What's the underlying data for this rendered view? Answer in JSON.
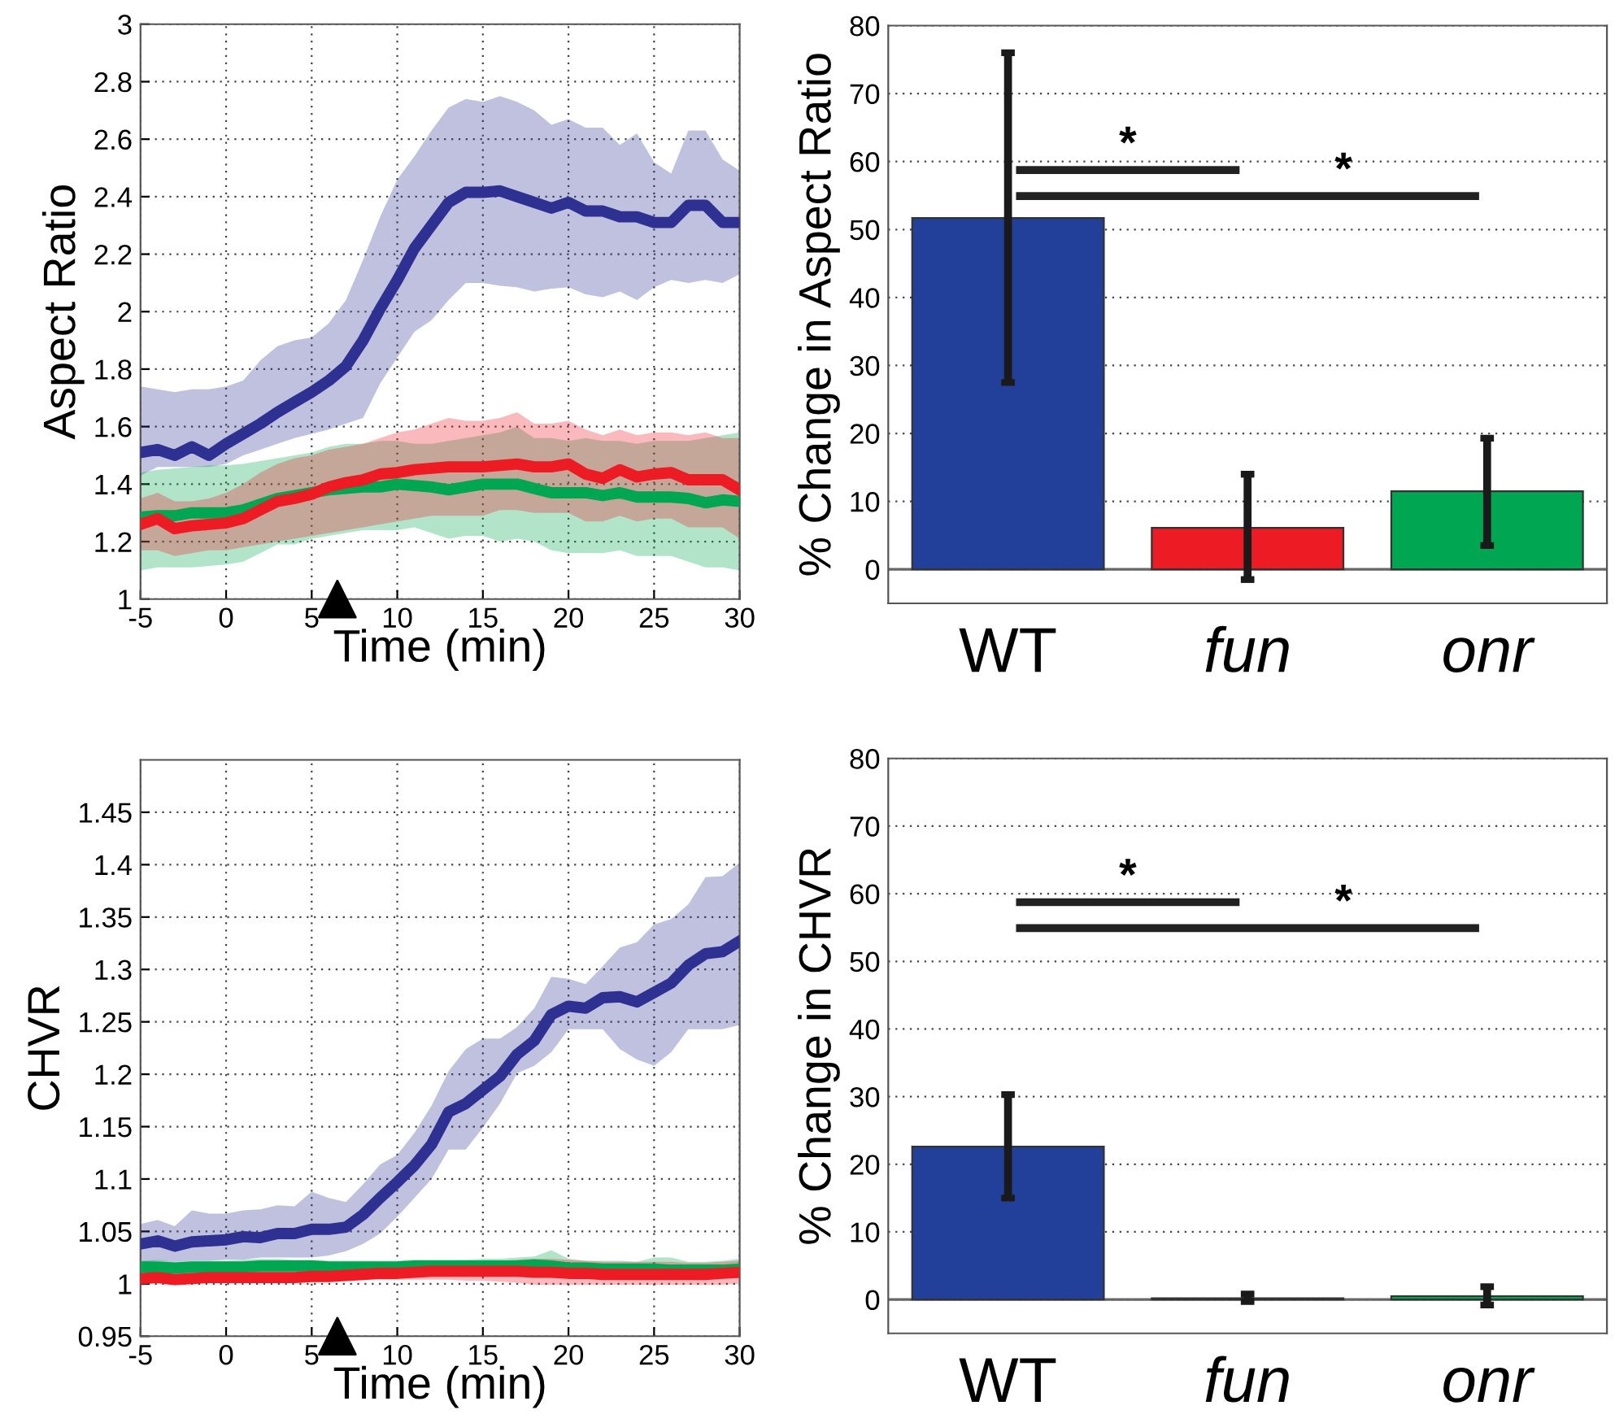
{
  "chart_data": [
    {
      "type": "line",
      "xlabel": "Time (min)",
      "ylabel": "Aspect Ratio",
      "xlim": [
        -5,
        30
      ],
      "ylim": [
        1,
        3
      ],
      "xticks": [
        -5,
        0,
        5,
        10,
        15,
        20,
        25,
        30
      ],
      "yticks": [
        1,
        1.2,
        1.4,
        1.6,
        1.8,
        2,
        2.2,
        2.4,
        2.6,
        2.8,
        3
      ],
      "grid": true,
      "x": [
        -5,
        -4,
        -3,
        -2,
        -1,
        0,
        1,
        2,
        3,
        4,
        5,
        6,
        7,
        8,
        9,
        10,
        11,
        12,
        13,
        14,
        15,
        16,
        17,
        18,
        19,
        20,
        21,
        22,
        23,
        24,
        25,
        26,
        27,
        28,
        29,
        30
      ],
      "series": [
        {
          "color": "#2e3192",
          "values": [
            1.51,
            1.52,
            1.5,
            1.53,
            1.5,
            1.54,
            1.575,
            1.61,
            1.65,
            1.685,
            1.72,
            1.76,
            1.81,
            1.9,
            2.01,
            2.11,
            2.22,
            2.3,
            2.38,
            2.415,
            2.415,
            2.42,
            2.4,
            2.38,
            2.36,
            2.38,
            2.35,
            2.35,
            2.33,
            2.33,
            2.31,
            2.31,
            2.37,
            2.37,
            2.31,
            2.31
          ],
          "upper": [
            1.74,
            1.73,
            1.72,
            1.73,
            1.73,
            1.74,
            1.76,
            1.83,
            1.88,
            1.9,
            1.91,
            1.96,
            2.04,
            2.18,
            2.33,
            2.46,
            2.54,
            2.63,
            2.71,
            2.74,
            2.73,
            2.75,
            2.73,
            2.7,
            2.65,
            2.67,
            2.64,
            2.64,
            2.58,
            2.62,
            2.52,
            2.48,
            2.63,
            2.63,
            2.53,
            2.49
          ],
          "lower": [
            1.43,
            1.46,
            1.46,
            1.46,
            1.46,
            1.47,
            1.5,
            1.52,
            1.54,
            1.56,
            1.575,
            1.59,
            1.61,
            1.63,
            1.75,
            1.84,
            1.93,
            1.97,
            2.04,
            2.1,
            2.1,
            2.09,
            2.085,
            2.07,
            2.08,
            2.085,
            2.06,
            2.05,
            2.07,
            2.04,
            2.085,
            2.11,
            2.1,
            2.11,
            2.1,
            2.13
          ]
        },
        {
          "color": "#00a651",
          "values": [
            1.285,
            1.29,
            1.29,
            1.3,
            1.3,
            1.3,
            1.31,
            1.33,
            1.35,
            1.36,
            1.37,
            1.38,
            1.385,
            1.39,
            1.39,
            1.4,
            1.395,
            1.39,
            1.38,
            1.39,
            1.4,
            1.4,
            1.4,
            1.385,
            1.37,
            1.37,
            1.37,
            1.36,
            1.37,
            1.355,
            1.355,
            1.355,
            1.35,
            1.335,
            1.345,
            1.34
          ],
          "upper": [
            1.44,
            1.45,
            1.455,
            1.46,
            1.465,
            1.465,
            1.47,
            1.48,
            1.49,
            1.5,
            1.51,
            1.53,
            1.54,
            1.54,
            1.55,
            1.55,
            1.54,
            1.54,
            1.55,
            1.56,
            1.57,
            1.58,
            1.6,
            1.56,
            1.56,
            1.55,
            1.56,
            1.55,
            1.55,
            1.54,
            1.55,
            1.55,
            1.55,
            1.56,
            1.57,
            1.58
          ],
          "lower": [
            1.1,
            1.11,
            1.11,
            1.11,
            1.115,
            1.12,
            1.13,
            1.16,
            1.19,
            1.19,
            1.21,
            1.22,
            1.23,
            1.24,
            1.24,
            1.24,
            1.25,
            1.23,
            1.21,
            1.22,
            1.22,
            1.2,
            1.21,
            1.2,
            1.17,
            1.16,
            1.16,
            1.16,
            1.17,
            1.15,
            1.15,
            1.15,
            1.13,
            1.11,
            1.11,
            1.1
          ]
        },
        {
          "color": "#ed1c24",
          "values": [
            1.26,
            1.28,
            1.245,
            1.255,
            1.26,
            1.265,
            1.28,
            1.31,
            1.34,
            1.35,
            1.365,
            1.39,
            1.405,
            1.415,
            1.435,
            1.44,
            1.45,
            1.455,
            1.46,
            1.46,
            1.46,
            1.465,
            1.47,
            1.46,
            1.46,
            1.47,
            1.435,
            1.42,
            1.45,
            1.425,
            1.435,
            1.44,
            1.415,
            1.415,
            1.415,
            1.38
          ],
          "upper": [
            1.35,
            1.37,
            1.34,
            1.34,
            1.35,
            1.37,
            1.4,
            1.44,
            1.47,
            1.49,
            1.5,
            1.52,
            1.53,
            1.54,
            1.56,
            1.58,
            1.59,
            1.61,
            1.63,
            1.62,
            1.62,
            1.63,
            1.65,
            1.61,
            1.61,
            1.62,
            1.59,
            1.57,
            1.59,
            1.57,
            1.58,
            1.58,
            1.57,
            1.58,
            1.56,
            1.56
          ],
          "lower": [
            1.17,
            1.17,
            1.15,
            1.16,
            1.17,
            1.17,
            1.18,
            1.19,
            1.2,
            1.21,
            1.22,
            1.23,
            1.24,
            1.25,
            1.26,
            1.27,
            1.28,
            1.29,
            1.29,
            1.29,
            1.29,
            1.31,
            1.31,
            1.3,
            1.3,
            1.3,
            1.27,
            1.27,
            1.29,
            1.27,
            1.28,
            1.28,
            1.25,
            1.25,
            1.25,
            1.21
          ]
        },
        {
          "type": "scatter",
          "x": [
            6.5
          ],
          "values": [
            1
          ],
          "color": "#000000",
          "marker": "triangle"
        }
      ]
    },
    {
      "type": "bar",
      "ylabel": "% Change in Aspect Ratio",
      "categories": [
        "WT",
        "fun",
        "onr"
      ],
      "values": [
        51.7,
        6.1,
        11.5
      ],
      "colors": [
        "#22409a",
        "#ed1c24",
        "#00a651"
      ],
      "errors": [
        [
          27.5,
          76
        ],
        [
          -1.5,
          14
        ],
        [
          3.5,
          19.3
        ]
      ],
      "ylim": [
        -5,
        80
      ],
      "yticks": [
        0,
        10,
        20,
        30,
        40,
        50,
        60,
        70,
        80
      ],
      "grid": "y",
      "ref_lines": [
        {
          "axis": "y",
          "value": 0,
          "color": "#666666"
        }
      ],
      "annotations": [
        "*",
        "*"
      ]
    },
    {
      "type": "line",
      "xlabel": "Time (min)",
      "ylabel": "CHVR",
      "xlim": [
        -5,
        30
      ],
      "ylim": [
        0.95,
        1.5
      ],
      "xticks": [
        -5,
        0,
        5,
        10,
        15,
        20,
        25,
        30
      ],
      "yticks": [
        0.95,
        1,
        1.05,
        1.1,
        1.15,
        1.2,
        1.25,
        1.3,
        1.35,
        1.4,
        1.45
      ],
      "grid": true,
      "x": [
        -5,
        -4,
        -3,
        -2,
        -1,
        0,
        1,
        2,
        3,
        4,
        5,
        6,
        7,
        8,
        9,
        10,
        11,
        12,
        13,
        14,
        15,
        16,
        17,
        18,
        19,
        20,
        21,
        22,
        23,
        24,
        25,
        26,
        27,
        28,
        29,
        30
      ],
      "series": [
        {
          "color": "#2e3192",
          "values": [
            1.038,
            1.041,
            1.036,
            1.04,
            1.041,
            1.042,
            1.045,
            1.044,
            1.048,
            1.048,
            1.052,
            1.052,
            1.054,
            1.066,
            1.082,
            1.097,
            1.113,
            1.133,
            1.164,
            1.172,
            1.185,
            1.198,
            1.219,
            1.232,
            1.257,
            1.265,
            1.263,
            1.273,
            1.274,
            1.269,
            1.278,
            1.287,
            1.304,
            1.315,
            1.317,
            1.327
          ],
          "upper": [
            1.057,
            1.061,
            1.055,
            1.07,
            1.067,
            1.067,
            1.07,
            1.071,
            1.075,
            1.074,
            1.088,
            1.082,
            1.078,
            1.095,
            1.114,
            1.123,
            1.144,
            1.17,
            1.203,
            1.224,
            1.234,
            1.234,
            1.245,
            1.263,
            1.293,
            1.291,
            1.286,
            1.303,
            1.321,
            1.326,
            1.343,
            1.348,
            1.362,
            1.388,
            1.389,
            1.402
          ],
          "lower": [
            1.02,
            1.022,
            1.021,
            1.022,
            1.022,
            1.023,
            1.023,
            1.025,
            1.025,
            1.025,
            1.025,
            1.027,
            1.031,
            1.038,
            1.048,
            1.064,
            1.082,
            1.1,
            1.128,
            1.128,
            1.149,
            1.172,
            1.201,
            1.208,
            1.221,
            1.243,
            1.243,
            1.243,
            1.224,
            1.214,
            1.208,
            1.221,
            1.243,
            1.243,
            1.243,
            1.247
          ]
        },
        {
          "color": "#00a651",
          "values": [
            1.016,
            1.016,
            1.015,
            1.016,
            1.016,
            1.016,
            1.016,
            1.017,
            1.017,
            1.017,
            1.017,
            1.016,
            1.016,
            1.016,
            1.016,
            1.016,
            1.017,
            1.017,
            1.017,
            1.017,
            1.017,
            1.017,
            1.017,
            1.018,
            1.017,
            1.015,
            1.015,
            1.014,
            1.014,
            1.014,
            1.014,
            1.013,
            1.013,
            1.013,
            1.013,
            1.014
          ],
          "upper": [
            1.022,
            1.023,
            1.021,
            1.022,
            1.022,
            1.022,
            1.023,
            1.024,
            1.024,
            1.023,
            1.023,
            1.022,
            1.022,
            1.022,
            1.022,
            1.022,
            1.023,
            1.023,
            1.023,
            1.023,
            1.024,
            1.024,
            1.025,
            1.026,
            1.032,
            1.024,
            1.022,
            1.022,
            1.022,
            1.021,
            1.025,
            1.025,
            1.021,
            1.021,
            1.022,
            1.024
          ],
          "lower": [
            1.01,
            1.01,
            1.009,
            1.01,
            1.01,
            1.01,
            1.01,
            1.011,
            1.011,
            1.011,
            1.011,
            1.01,
            1.01,
            1.01,
            1.01,
            1.01,
            1.011,
            1.011,
            1.011,
            1.011,
            1.011,
            1.011,
            1.01,
            1.008,
            1.008,
            1.007,
            1.007,
            1.006,
            1.006,
            1.006,
            1.006,
            1.005,
            1.005,
            1.005,
            1.005,
            1.006
          ]
        },
        {
          "color": "#ed1c24",
          "values": [
            1.005,
            1.006,
            1.004,
            1.005,
            1.006,
            1.006,
            1.006,
            1.006,
            1.006,
            1.006,
            1.007,
            1.007,
            1.008,
            1.009,
            1.01,
            1.01,
            1.011,
            1.012,
            1.012,
            1.012,
            1.012,
            1.012,
            1.012,
            1.011,
            1.011,
            1.01,
            1.01,
            1.009,
            1.009,
            1.009,
            1.009,
            1.009,
            1.009,
            1.009,
            1.01,
            1.011
          ],
          "upper": [
            1.011,
            1.012,
            1.01,
            1.011,
            1.012,
            1.012,
            1.012,
            1.012,
            1.012,
            1.012,
            1.013,
            1.013,
            1.014,
            1.016,
            1.017,
            1.018,
            1.019,
            1.02,
            1.021,
            1.021,
            1.021,
            1.022,
            1.023,
            1.024,
            1.024,
            1.023,
            1.022,
            1.021,
            1.021,
            1.021,
            1.021,
            1.021,
            1.02,
            1.02,
            1.021,
            1.022
          ],
          "lower": [
            1.0,
            1.001,
            0.999,
            1.0,
            1.001,
            1.001,
            1.001,
            1.001,
            1.001,
            1.001,
            1.002,
            1.002,
            1.003,
            1.004,
            1.004,
            1.004,
            1.004,
            1.004,
            1.004,
            1.003,
            1.003,
            1.002,
            1.001,
            0.999,
            0.999,
            0.999,
            0.999,
            0.999,
            0.999,
            0.999,
            0.999,
            0.999,
            0.999,
            0.999,
            0.999,
            1.0
          ]
        },
        {
          "type": "scatter",
          "x": [
            6.5
          ],
          "values": [
            0.95
          ],
          "color": "#000000",
          "marker": "triangle"
        }
      ]
    },
    {
      "type": "bar",
      "ylabel": "% Change in CHVR",
      "categories": [
        "WT",
        "fun",
        "onr"
      ],
      "values": [
        22.6,
        0.2,
        0.5
      ],
      "colors": [
        "#22409a",
        "#ed1c24",
        "#00a651"
      ],
      "errors": [
        [
          15,
          30.3
        ],
        [
          -0.3,
          0.8
        ],
        [
          -0.8,
          1.9
        ]
      ],
      "ylim": [
        -5,
        80
      ],
      "yticks": [
        0,
        10,
        20,
        30,
        40,
        50,
        60,
        70,
        80
      ],
      "grid": "y",
      "ref_lines": [
        {
          "axis": "y",
          "value": 0,
          "color": "#666666"
        }
      ],
      "annotations": [
        "*",
        "*"
      ]
    }
  ]
}
